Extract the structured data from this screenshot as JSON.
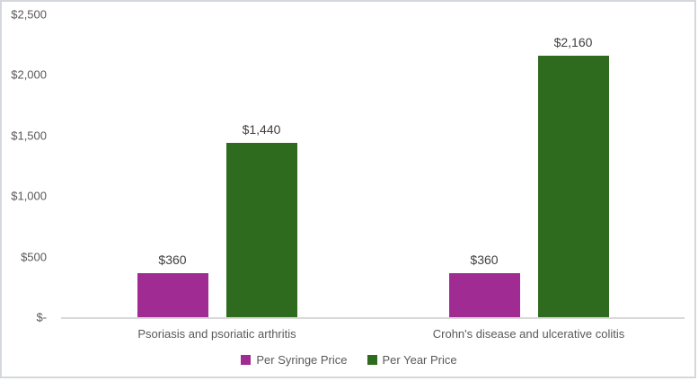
{
  "chart_data": {
    "type": "bar",
    "title": "",
    "xlabel": "",
    "ylabel": "",
    "grid": false,
    "legend_position": "bottom",
    "categories": [
      "Psoriasis and psoriatic arthritis",
      "Crohn's disease and ulcerative colitis"
    ],
    "series": [
      {
        "name": "Per Syringe Price",
        "color": "#A02B93",
        "values": [
          360,
          360
        ],
        "data_labels": [
          "$360",
          "$360"
        ]
      },
      {
        "name": "Per Year Price",
        "color": "#2E6B1E",
        "values": [
          1440,
          2160
        ],
        "data_labels": [
          "$1,440",
          "$2,160"
        ]
      }
    ],
    "y_axis": {
      "min": 0,
      "max": 2500,
      "ticks": [
        {
          "label": "$2,500",
          "value": 2500
        },
        {
          "label": "$2,000",
          "value": 2000
        },
        {
          "label": "$1,500",
          "value": 1500
        },
        {
          "label": "$1,000",
          "value": 1000
        },
        {
          "label": "$500",
          "value": 500
        },
        {
          "label": "$-",
          "value": 0
        }
      ]
    }
  },
  "styles": {
    "background": "#FFFFFF",
    "frame_border_color": "#D4D8DD",
    "axis_line_color": "#D9D9D9",
    "axis_text_color": "#595959",
    "data_label_color": "#404040"
  }
}
